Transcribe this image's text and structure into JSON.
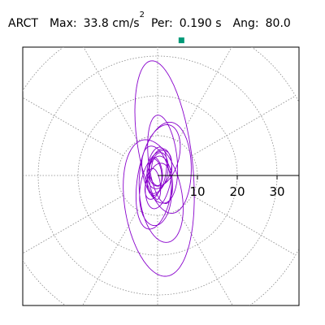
{
  "header": {
    "station": "ARCT",
    "max_label": "Max:",
    "max_value": "33.8 cm/s",
    "max_exp": "2",
    "per_label": "Per:",
    "per_value": "0.190 s",
    "ang_label": "Ang:",
    "ang_value": "80.0"
  },
  "chart_data": {
    "type": "polar",
    "title": "ARCT  Max: 33.8 cm/s2  Per: 0.190 s  Ang: 80.0",
    "radial_unit": "cm/s2",
    "radial_ticks": [
      10,
      20,
      30
    ],
    "radial_range": [
      0,
      40
    ],
    "grid": "dotted circles at 10, 20, 30, 40 and spokes every 30 degrees",
    "max_point": {
      "radius": 33.8,
      "angle_deg": 80.0,
      "marker": "square",
      "color": "#009977"
    },
    "trace_color": "#8800cc",
    "trace_description": "particle motion orbits elongated along the 80 degree direction"
  },
  "colors": {
    "trace": "#8800cc",
    "marker": "#009977",
    "grid": "#888888"
  }
}
